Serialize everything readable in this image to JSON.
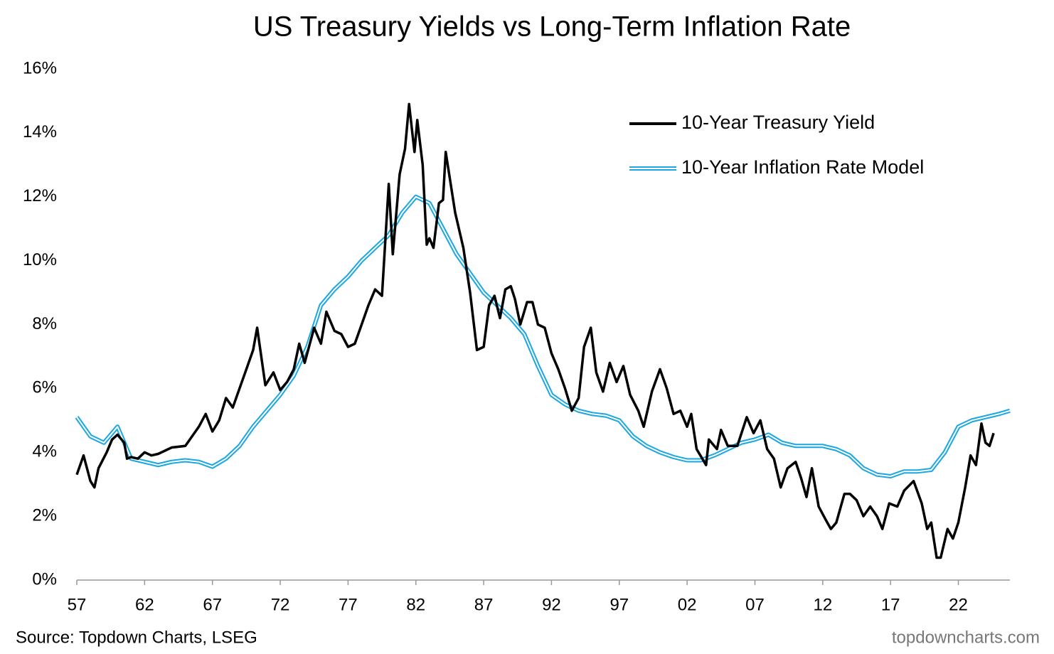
{
  "chart_data": {
    "type": "line",
    "title": "US Treasury Yields vs Long-Term Inflation Rate",
    "source": "Source: Topdown Charts, LSEG",
    "watermark": "topdowncharts.com",
    "legend": "upper right",
    "xlim": [
      1957,
      2025.8
    ],
    "ylim": [
      0,
      16
    ],
    "xticks": [
      {
        "value": 1957,
        "label": "57"
      },
      {
        "value": 1962,
        "label": "62"
      },
      {
        "value": 1967,
        "label": "67"
      },
      {
        "value": 1972,
        "label": "72"
      },
      {
        "value": 1977,
        "label": "77"
      },
      {
        "value": 1982,
        "label": "82"
      },
      {
        "value": 1987,
        "label": "87"
      },
      {
        "value": 1992,
        "label": "92"
      },
      {
        "value": 1997,
        "label": "97"
      },
      {
        "value": 2002,
        "label": "02"
      },
      {
        "value": 2007,
        "label": "07"
      },
      {
        "value": 2012,
        "label": "12"
      },
      {
        "value": 2017,
        "label": "17"
      },
      {
        "value": 2022,
        "label": "22"
      }
    ],
    "yticks": [
      {
        "value": 0,
        "label": "0%"
      },
      {
        "value": 2,
        "label": "2%"
      },
      {
        "value": 4,
        "label": "4%"
      },
      {
        "value": 6,
        "label": "6%"
      },
      {
        "value": 8,
        "label": "8%"
      },
      {
        "value": 10,
        "label": "10%"
      },
      {
        "value": 12,
        "label": "12%"
      },
      {
        "value": 14,
        "label": "14%"
      },
      {
        "value": 16,
        "label": "16%"
      }
    ],
    "series": [
      {
        "name": "10-Year Treasury Yield",
        "color": "#000000",
        "style": "solid",
        "x": [
          1957.0,
          1957.5,
          1958.0,
          1958.3,
          1958.6,
          1959.2,
          1959.6,
          1960.0,
          1960.5,
          1960.7,
          1961.0,
          1961.5,
          1962.0,
          1962.5,
          1963.0,
          1964.0,
          1965.0,
          1966.0,
          1966.5,
          1967.0,
          1967.5,
          1968.0,
          1968.5,
          1969.0,
          1969.5,
          1970.0,
          1970.3,
          1970.9,
          1971.5,
          1972.0,
          1972.5,
          1973.0,
          1973.4,
          1973.8,
          1974.5,
          1975.0,
          1975.4,
          1976.0,
          1976.5,
          1977.0,
          1977.5,
          1978.0,
          1978.5,
          1979.0,
          1979.5,
          1980.0,
          1980.3,
          1980.8,
          1981.2,
          1981.5,
          1981.9,
          1982.1,
          1982.5,
          1982.8,
          1983.0,
          1983.3,
          1983.7,
          1984.0,
          1984.2,
          1984.9,
          1985.5,
          1986.0,
          1986.5,
          1987.0,
          1987.4,
          1987.8,
          1988.2,
          1988.6,
          1989.0,
          1989.3,
          1989.7,
          1990.2,
          1990.6,
          1991.0,
          1991.5,
          1992.0,
          1992.5,
          1993.0,
          1993.5,
          1994.0,
          1994.4,
          1994.9,
          1995.3,
          1995.8,
          1996.3,
          1996.8,
          1997.3,
          1997.8,
          1998.4,
          1998.8,
          1999.4,
          2000.0,
          2000.5,
          2001.0,
          2001.5,
          2002.0,
          2002.3,
          2002.7,
          2003.4,
          2003.6,
          2004.2,
          2004.5,
          2005.0,
          2005.7,
          2006.4,
          2006.9,
          2007.4,
          2007.9,
          2008.4,
          2008.9,
          2009.4,
          2010.0,
          2010.4,
          2010.8,
          2011.2,
          2011.7,
          2012.2,
          2012.6,
          2013.0,
          2013.6,
          2014.0,
          2014.5,
          2015.0,
          2015.5,
          2016.0,
          2016.4,
          2016.9,
          2017.5,
          2018.0,
          2018.7,
          2019.3,
          2019.7,
          2020.0,
          2020.4,
          2020.7,
          2021.2,
          2021.6,
          2022.0,
          2022.5,
          2022.9,
          2023.3,
          2023.7,
          2024.0,
          2024.3,
          2024.6
        ],
        "values": [
          3.3,
          3.9,
          3.1,
          2.9,
          3.5,
          4.0,
          4.4,
          4.55,
          4.3,
          3.8,
          3.85,
          3.8,
          4.0,
          3.9,
          3.95,
          4.15,
          4.2,
          4.8,
          5.2,
          4.65,
          5.0,
          5.7,
          5.4,
          6.0,
          6.6,
          7.2,
          7.9,
          6.1,
          6.5,
          5.95,
          6.2,
          6.6,
          7.4,
          6.8,
          7.9,
          7.4,
          8.4,
          7.8,
          7.7,
          7.3,
          7.4,
          8.0,
          8.6,
          9.1,
          8.9,
          12.4,
          10.2,
          12.7,
          13.5,
          14.9,
          13.4,
          14.4,
          13.0,
          10.5,
          10.7,
          10.4,
          11.8,
          11.9,
          13.4,
          11.5,
          10.4,
          9.0,
          7.2,
          7.3,
          8.6,
          8.9,
          8.2,
          9.1,
          9.2,
          8.8,
          8.0,
          8.7,
          8.7,
          8.0,
          7.9,
          7.1,
          6.6,
          6.0,
          5.3,
          5.7,
          7.3,
          7.9,
          6.5,
          5.9,
          6.8,
          6.2,
          6.7,
          5.8,
          5.3,
          4.8,
          5.9,
          6.6,
          6.0,
          5.2,
          5.3,
          4.8,
          5.2,
          4.1,
          3.6,
          4.4,
          4.1,
          4.7,
          4.2,
          4.2,
          5.1,
          4.6,
          5.0,
          4.1,
          3.8,
          2.9,
          3.5,
          3.7,
          3.2,
          2.6,
          3.5,
          2.3,
          1.9,
          1.6,
          1.8,
          2.7,
          2.7,
          2.5,
          2.0,
          2.3,
          2.0,
          1.6,
          2.4,
          2.3,
          2.8,
          3.1,
          2.4,
          1.6,
          1.8,
          0.7,
          0.7,
          1.6,
          1.3,
          1.8,
          2.9,
          3.9,
          3.6,
          4.9,
          4.3,
          4.2,
          4.6
        ]
      },
      {
        "name": "10-Year Inflation Rate Model",
        "color": "#1aa7e0",
        "style": "double",
        "x": [
          1957,
          1958,
          1959,
          1960,
          1961,
          1962,
          1963,
          1964,
          1965,
          1966,
          1967,
          1968,
          1969,
          1970,
          1971,
          1972,
          1973,
          1974,
          1975,
          1976,
          1977,
          1978,
          1979,
          1980,
          1981,
          1982,
          1983,
          1984,
          1985,
          1986,
          1987,
          1988,
          1989,
          1990,
          1991,
          1992,
          1993,
          1994,
          1995,
          1996,
          1997,
          1998,
          1999,
          2000,
          2001,
          2002,
          2003,
          2004,
          2005,
          2006,
          2007,
          2008,
          2009,
          2010,
          2011,
          2012,
          2013,
          2014,
          2015,
          2016,
          2017,
          2018,
          2019,
          2020,
          2021,
          2022,
          2023,
          2024,
          2025,
          2025.8
        ],
        "values": [
          5.1,
          4.5,
          4.3,
          4.8,
          3.8,
          3.7,
          3.6,
          3.7,
          3.75,
          3.7,
          3.55,
          3.8,
          4.2,
          4.8,
          5.3,
          5.8,
          6.4,
          7.3,
          8.6,
          9.1,
          9.5,
          10.0,
          10.4,
          10.8,
          11.5,
          12.0,
          11.8,
          11.0,
          10.2,
          9.6,
          9.0,
          8.6,
          8.2,
          7.7,
          6.7,
          5.8,
          5.5,
          5.3,
          5.2,
          5.15,
          5.0,
          4.5,
          4.2,
          4.0,
          3.85,
          3.75,
          3.75,
          3.9,
          4.1,
          4.3,
          4.4,
          4.55,
          4.3,
          4.2,
          4.2,
          4.2,
          4.1,
          3.9,
          3.5,
          3.3,
          3.25,
          3.4,
          3.4,
          3.45,
          4.0,
          4.8,
          5.0,
          5.1,
          5.2,
          5.3
        ]
      }
    ]
  }
}
